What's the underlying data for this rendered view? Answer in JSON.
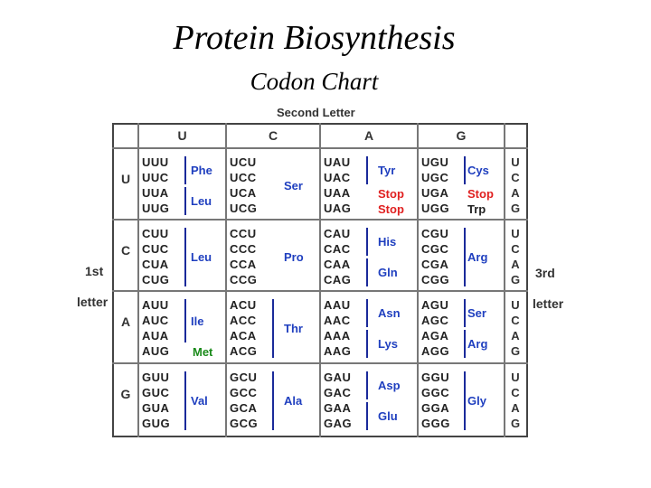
{
  "title": "Protein Biosynthesis",
  "subtitle": "Codon Chart",
  "second_letter_label": "Second Letter",
  "first_letter_label": [
    "1st",
    "letter"
  ],
  "third_letter_label": [
    "3rd",
    "letter"
  ],
  "second_letters": [
    "U",
    "C",
    "A",
    "G"
  ],
  "rows": [
    {
      "first": "U",
      "third": [
        "U",
        "C",
        "A",
        "G"
      ],
      "cells": [
        {
          "codons": [
            "UUU",
            "UUC",
            "UUA",
            "UUG"
          ],
          "groups": [
            {
              "label": "Phe",
              "span": [
                0,
                1
              ],
              "kind": "aa"
            },
            {
              "label": "Leu",
              "span": [
                2,
                3
              ],
              "kind": "aa"
            }
          ]
        },
        {
          "codons": [
            "UCU",
            "UCC",
            "UCA",
            "UCG"
          ],
          "groups": [
            {
              "label": "Ser",
              "span": [
                0,
                3
              ],
              "kind": "aa",
              "nobar": true
            }
          ]
        },
        {
          "codons": [
            "UAU",
            "UAC",
            "UAA",
            "UAG"
          ],
          "groups": [
            {
              "label": "Tyr",
              "span": [
                0,
                1
              ],
              "kind": "aa"
            },
            {
              "label": "Stop",
              "span": [
                2,
                2
              ],
              "kind": "stop",
              "nobar": true
            },
            {
              "label": "Stop",
              "span": [
                3,
                3
              ],
              "kind": "stop",
              "nobar": true
            }
          ]
        },
        {
          "codons": [
            "UGU",
            "UGC",
            "UGA",
            "UGG"
          ],
          "groups": [
            {
              "label": "Cys",
              "span": [
                0,
                1
              ],
              "kind": "aa"
            },
            {
              "label": "Stop",
              "span": [
                2,
                2
              ],
              "kind": "stop",
              "nobar": true
            },
            {
              "label": "Trp",
              "span": [
                3,
                3
              ],
              "kind": "plain",
              "nobar": true
            }
          ]
        }
      ]
    },
    {
      "first": "C",
      "third": [
        "U",
        "C",
        "A",
        "G"
      ],
      "cells": [
        {
          "codons": [
            "CUU",
            "CUC",
            "CUA",
            "CUG"
          ],
          "groups": [
            {
              "label": "Leu",
              "span": [
                0,
                3
              ],
              "kind": "aa"
            }
          ]
        },
        {
          "codons": [
            "CCU",
            "CCC",
            "CCA",
            "CCG"
          ],
          "groups": [
            {
              "label": "Pro",
              "span": [
                0,
                3
              ],
              "kind": "aa",
              "nobar": true
            }
          ]
        },
        {
          "codons": [
            "CAU",
            "CAC",
            "CAA",
            "CAG"
          ],
          "groups": [
            {
              "label": "His",
              "span": [
                0,
                1
              ],
              "kind": "aa"
            },
            {
              "label": "Gln",
              "span": [
                2,
                3
              ],
              "kind": "aa"
            }
          ]
        },
        {
          "codons": [
            "CGU",
            "CGC",
            "CGA",
            "CGG"
          ],
          "groups": [
            {
              "label": "Arg",
              "span": [
                0,
                3
              ],
              "kind": "aa"
            }
          ]
        }
      ]
    },
    {
      "first": "A",
      "third": [
        "U",
        "C",
        "A",
        "G"
      ],
      "cells": [
        {
          "codons": [
            "AUU",
            "AUC",
            "AUA",
            "AUG"
          ],
          "groups": [
            {
              "label": "Ile",
              "span": [
                0,
                2
              ],
              "kind": "aa"
            },
            {
              "label": "Met",
              "span": [
                3,
                3
              ],
              "kind": "start",
              "nobar": true
            }
          ]
        },
        {
          "codons": [
            "ACU",
            "ACC",
            "ACA",
            "ACG"
          ],
          "groups": [
            {
              "label": "Thr",
              "span": [
                0,
                3
              ],
              "kind": "aa"
            }
          ]
        },
        {
          "codons": [
            "AAU",
            "AAC",
            "AAA",
            "AAG"
          ],
          "groups": [
            {
              "label": "Asn",
              "span": [
                0,
                1
              ],
              "kind": "aa"
            },
            {
              "label": "Lys",
              "span": [
                2,
                3
              ],
              "kind": "aa"
            }
          ]
        },
        {
          "codons": [
            "AGU",
            "AGC",
            "AGA",
            "AGG"
          ],
          "groups": [
            {
              "label": "Ser",
              "span": [
                0,
                1
              ],
              "kind": "aa"
            },
            {
              "label": "Arg",
              "span": [
                2,
                3
              ],
              "kind": "aa"
            }
          ]
        }
      ]
    },
    {
      "first": "G",
      "third": [
        "U",
        "C",
        "A",
        "G"
      ],
      "cells": [
        {
          "codons": [
            "GUU",
            "GUC",
            "GUA",
            "GUG"
          ],
          "groups": [
            {
              "label": "Val",
              "span": [
                0,
                3
              ],
              "kind": "aa"
            }
          ]
        },
        {
          "codons": [
            "GCU",
            "GCC",
            "GCA",
            "GCG"
          ],
          "groups": [
            {
              "label": "Ala",
              "span": [
                0,
                3
              ],
              "kind": "aa"
            }
          ]
        },
        {
          "codons": [
            "GAU",
            "GAC",
            "GAA",
            "GAG"
          ],
          "groups": [
            {
              "label": "Asp",
              "span": [
                0,
                1
              ],
              "kind": "aa"
            },
            {
              "label": "Glu",
              "span": [
                2,
                3
              ],
              "kind": "aa"
            }
          ]
        },
        {
          "codons": [
            "GGU",
            "GGC",
            "GGA",
            "GGG"
          ],
          "groups": [
            {
              "label": "Gly",
              "span": [
                0,
                3
              ],
              "kind": "aa"
            }
          ]
        }
      ]
    }
  ]
}
